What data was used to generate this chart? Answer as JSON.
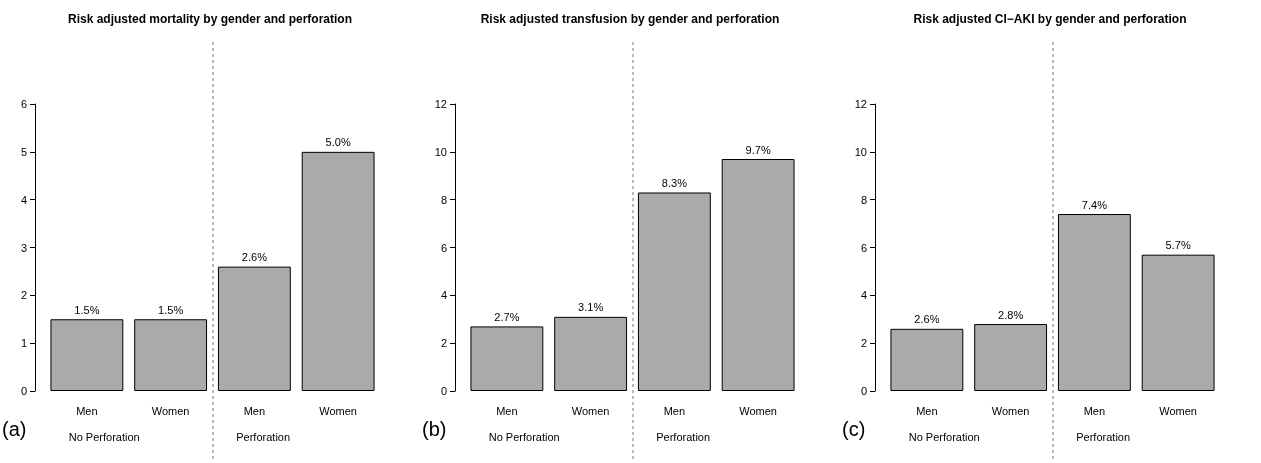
{
  "chart_data": [
    {
      "type": "bar",
      "title": "Risk adjusted mortality by gender and perforation",
      "categories": [
        "Men",
        "Women",
        "Men",
        "Women"
      ],
      "values": [
        1.5,
        1.5,
        2.6,
        5.0
      ],
      "value_labels": [
        "1.5%",
        "1.5%",
        "2.6%",
        "5.0%"
      ],
      "color": "#aaaaaa",
      "ylim": [
        0,
        6
      ],
      "yticks": [
        0,
        1,
        2,
        3,
        4,
        5,
        6
      ],
      "grid": false,
      "annotations": [
        "No Perforation",
        "Perforation",
        "(a)"
      ]
    },
    {
      "type": "bar",
      "title": "Risk adjusted transfusion by gender and perforation",
      "categories": [
        "Men",
        "Women",
        "Men",
        "Women"
      ],
      "values": [
        2.7,
        3.1,
        8.3,
        9.7
      ],
      "value_labels": [
        "2.7%",
        "3.1%",
        "8.3%",
        "9.7%"
      ],
      "color": "#aaaaaa",
      "ylim": [
        0,
        12
      ],
      "yticks": [
        0,
        2,
        4,
        6,
        8,
        10,
        12
      ],
      "grid": false,
      "annotations": [
        "No Perforation",
        "Perforation",
        "(b)"
      ]
    },
    {
      "type": "bar",
      "title": "Risk adjusted CI−AKI by gender and perforation",
      "categories": [
        "Men",
        "Women",
        "Men",
        "Women"
      ],
      "values": [
        2.6,
        2.8,
        7.4,
        5.7
      ],
      "value_labels": [
        "2.6%",
        "2.8%",
        "7.4%",
        "5.7%"
      ],
      "color": "#aaaaaa",
      "ylim": [
        0,
        12
      ],
      "yticks": [
        0,
        2,
        4,
        6,
        8,
        10,
        12
      ],
      "grid": false,
      "annotations": [
        "No Perforation",
        "Perforation",
        "(c)"
      ]
    }
  ]
}
